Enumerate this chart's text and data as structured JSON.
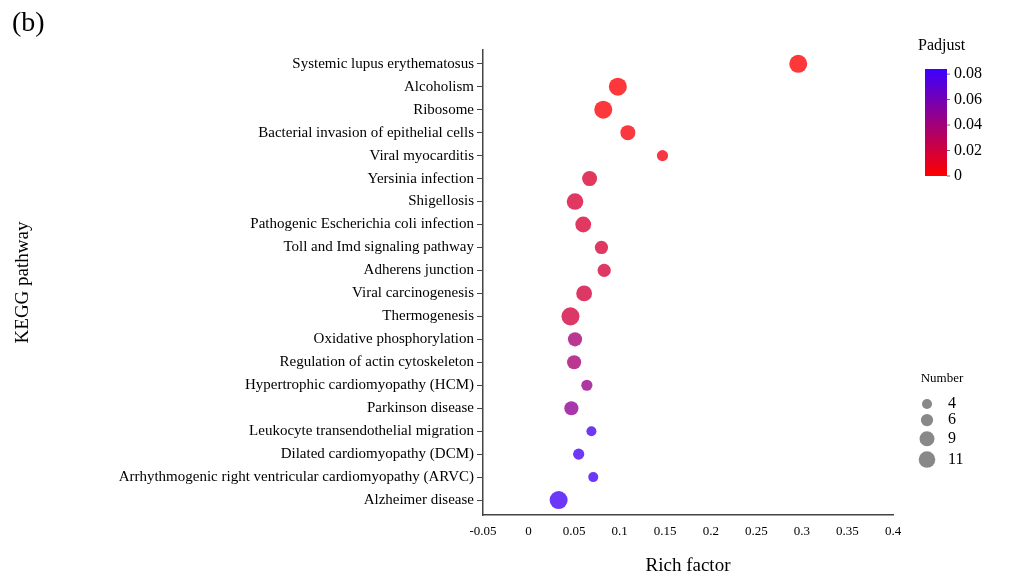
{
  "chart_data": {
    "type": "bubble",
    "title": "(b)",
    "xlabel": "Rich factor",
    "ylabel": "KEGG pathway",
    "clabel": "Padjust",
    "legend_title": "Number",
    "categories": [
      "Systemic lupus erythematosus",
      "Alcoholism",
      "Ribosome",
      "Bacterial invasion of epithelial cells",
      "Viral myocarditis",
      "Yersinia infection",
      "Shigellosis",
      "Pathogenic Escherichia coli infection",
      "Toll and Imd signaling pathway",
      "Adherens junction",
      "Viral carcinogenesis",
      "Thermogenesis",
      "Oxidative phosphorylation",
      "Regulation of actin cytoskeleton",
      "Hypertrophic cardiomyopathy (HCM)",
      "Parkinson disease",
      "Leukocyte transendothelial migration",
      "Dilated cardiomyopathy (DCM)",
      "Arrhythmogenic right ventricular cardiomyopathy (ARVC)",
      "Alzheimer disease"
    ],
    "values": [
      0.296,
      0.098,
      0.082,
      0.109,
      0.147,
      0.067,
      0.051,
      0.06,
      0.08,
      0.083,
      0.061,
      0.046,
      0.051,
      0.05,
      0.064,
      0.047,
      0.069,
      0.055,
      0.071,
      0.033
    ],
    "sizes": [
      13,
      13,
      13,
      9,
      5,
      9,
      11,
      10,
      7,
      7,
      10,
      13,
      8,
      8,
      5,
      8,
      4,
      5,
      4,
      13
    ],
    "cvalues": [
      0.001,
      0.001,
      0.001,
      0.003,
      0.005,
      0.016,
      0.017,
      0.017,
      0.018,
      0.018,
      0.019,
      0.02,
      0.038,
      0.038,
      0.045,
      0.048,
      0.08,
      0.08,
      0.081,
      0.082
    ],
    "size_legend": [
      4,
      6,
      9,
      11
    ],
    "clim": [
      0,
      0.084
    ],
    "cticks": [
      0,
      0.02,
      0.04,
      0.06,
      0.08
    ],
    "xlim": [
      -0.05,
      0.4
    ],
    "xticks": [
      -0.05,
      0,
      0.05,
      0.1,
      0.15,
      0.2,
      0.25,
      0.3,
      0.35,
      0.4
    ],
    "grid": false,
    "orientation": "horizontal"
  }
}
